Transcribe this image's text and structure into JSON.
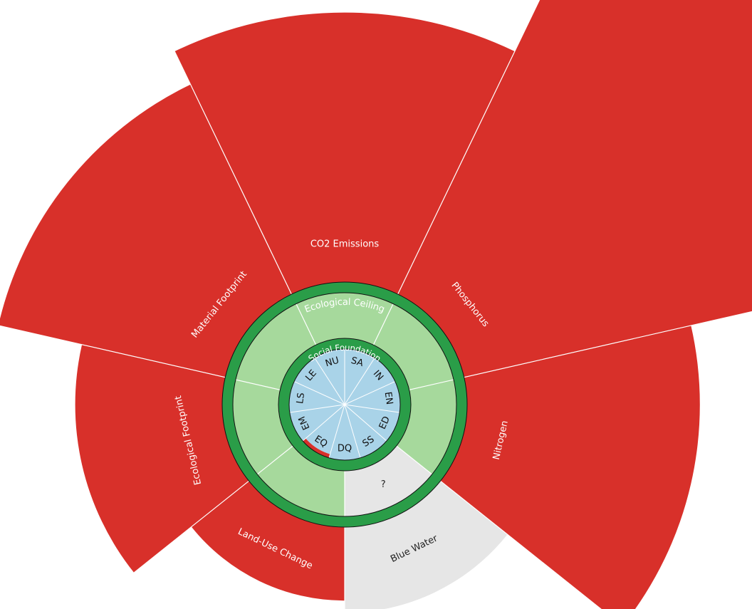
{
  "chart_data": {
    "type": "doughnut",
    "ceiling_label": "Ecological Ceiling",
    "foundation_label": "Social Foundation",
    "ceiling": 1,
    "foundation": 1,
    "boundaries": [
      {
        "name": "CO2 Emissions",
        "value": 3.2,
        "color": "#d8302a",
        "inner_color": "#a6d99c"
      },
      {
        "name": "Phosphorus",
        "value": 4.7,
        "color": "#d8302a",
        "inner_color": "#a6d99c"
      },
      {
        "name": "Nitrogen",
        "value": 2.9,
        "color": "#d8302a",
        "inner_color": "#a6d99c"
      },
      {
        "name": "Blue Water",
        "value": 1.7,
        "color": "#e6e6e6",
        "inner_color": "#e6e6e6",
        "inner_label": "?"
      },
      {
        "name": "Land-Use Change",
        "value": 1.6,
        "color": "#d8302a",
        "inner_color": "#a6d99c"
      },
      {
        "name": "Ecological Footprint",
        "value": 2.2,
        "color": "#d8302a",
        "inner_color": "#a6d99c"
      },
      {
        "name": "Material Footprint",
        "value": 2.9,
        "color": "#d8302a",
        "inner_color": "#a6d99c"
      }
    ],
    "social": [
      {
        "name": "SA",
        "value": 1
      },
      {
        "name": "IN",
        "value": 1
      },
      {
        "name": "EN",
        "value": 1
      },
      {
        "name": "ED",
        "value": 1
      },
      {
        "name": "SS",
        "value": 1
      },
      {
        "name": "DQ",
        "value": 1
      },
      {
        "name": "EQ",
        "value": 0.93
      },
      {
        "name": "EM",
        "value": 1
      },
      {
        "name": "LS",
        "value": 1
      },
      {
        "name": "LE",
        "value": 1
      },
      {
        "name": "NU",
        "value": 1
      }
    ],
    "social_color": "#a9d3e8",
    "shortfall_color": "#d8302a",
    "ring_color": "#2a9d48"
  }
}
